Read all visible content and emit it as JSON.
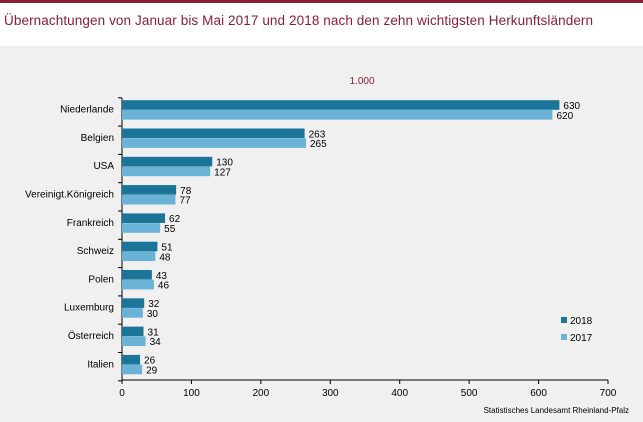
{
  "title": "Übernachtungen von Januar bis Mai 2017 und 2018 nach den zehn wichtigsten Herkunftsländern",
  "source": "Statistisches Landesamt Rheinland-Pfalz",
  "colors": {
    "brand": "#8a1f33",
    "panel": "#f0f0f0",
    "s2018": "#1a7598",
    "s2017": "#6bb3d6"
  },
  "chart_data": {
    "type": "bar",
    "orientation": "horizontal",
    "unit_label": "1.000",
    "categories": [
      "Niederlande",
      "Belgien",
      "USA",
      "Vereinigt.Königreich",
      "Frankreich",
      "Schweiz",
      "Polen",
      "Luxemburg",
      "Österreich",
      "Italien"
    ],
    "series": [
      {
        "name": "2018",
        "values": [
          630,
          263,
          130,
          78,
          62,
          51,
          43,
          32,
          31,
          26
        ]
      },
      {
        "name": "2017",
        "values": [
          620,
          265,
          127,
          77,
          55,
          48,
          46,
          30,
          34,
          29
        ]
      }
    ],
    "xlim": [
      0,
      700
    ],
    "xticks": [
      0,
      100,
      200,
      300,
      400,
      500,
      600,
      700
    ],
    "grid": false,
    "legend_position": "bottom-right"
  }
}
